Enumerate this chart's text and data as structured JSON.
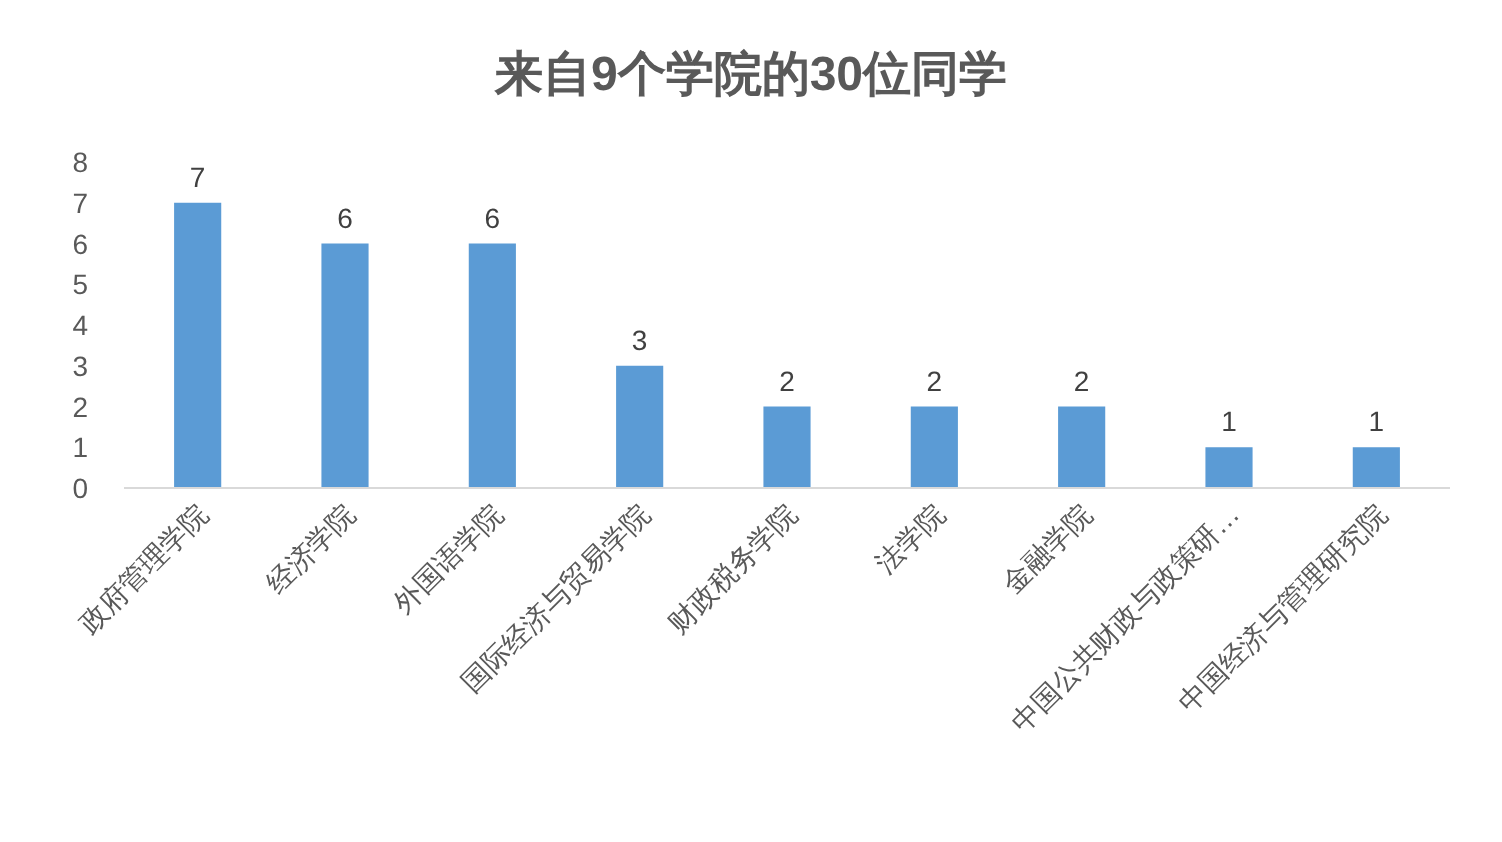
{
  "chart_data": {
    "type": "bar",
    "title": "来自9个学院的30位同学",
    "categories": [
      "政府管理学院",
      "经济学院",
      "外国语学院",
      "国际经济与贸易学院",
      "财政税务学院",
      "法学院",
      "金融学院",
      "中国公共财政与政策研…",
      "中国经济与管理研究院"
    ],
    "values": [
      7,
      6,
      6,
      3,
      2,
      2,
      2,
      1,
      1
    ],
    "color": "#5b9bd5",
    "ylim": [
      0,
      8
    ],
    "yticks": [
      0,
      1,
      2,
      3,
      4,
      5,
      6,
      7,
      8
    ],
    "data_labels": true,
    "grid": false
  }
}
